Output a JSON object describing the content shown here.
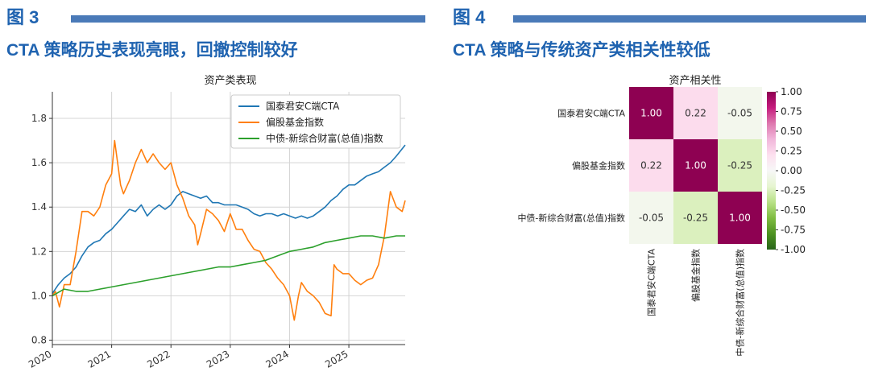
{
  "figures": [
    {
      "label": "图 3",
      "title": "CTA 策略历史表现亮眼，回撤控制较好"
    },
    {
      "label": "图 4",
      "title": "CTA 策略与传统资产类相关性较低"
    }
  ],
  "chart_data": [
    {
      "type": "line",
      "title": "资产类表现",
      "xlabel": "",
      "ylabel": "",
      "xlim": [
        2020.0,
        2025.95
      ],
      "ylim": [
        0.78,
        1.92
      ],
      "x_ticks": [
        "2020",
        "2021",
        "2022",
        "2023",
        "2024",
        "2025"
      ],
      "x_tick_values": [
        2020,
        2021,
        2022,
        2023,
        2024,
        2025
      ],
      "y_ticks": [
        "0.8",
        "1.0",
        "1.2",
        "1.4",
        "1.6",
        "1.8"
      ],
      "y_tick_values": [
        0.8,
        1.0,
        1.2,
        1.4,
        1.6,
        1.8
      ],
      "grid": "on",
      "legend_position": "top-right",
      "series": [
        {
          "name": "国泰君安C端CTA",
          "color": "#1f77b4",
          "points": [
            [
              2020.0,
              1.01
            ],
            [
              2020.1,
              1.05
            ],
            [
              2020.2,
              1.08
            ],
            [
              2020.3,
              1.1
            ],
            [
              2020.4,
              1.13
            ],
            [
              2020.5,
              1.18
            ],
            [
              2020.6,
              1.22
            ],
            [
              2020.7,
              1.24
            ],
            [
              2020.8,
              1.25
            ],
            [
              2020.9,
              1.28
            ],
            [
              2021.0,
              1.3
            ],
            [
              2021.1,
              1.33
            ],
            [
              2021.2,
              1.36
            ],
            [
              2021.3,
              1.39
            ],
            [
              2021.4,
              1.38
            ],
            [
              2021.5,
              1.41
            ],
            [
              2021.6,
              1.36
            ],
            [
              2021.7,
              1.39
            ],
            [
              2021.8,
              1.41
            ],
            [
              2021.9,
              1.39
            ],
            [
              2022.0,
              1.41
            ],
            [
              2022.1,
              1.45
            ],
            [
              2022.2,
              1.47
            ],
            [
              2022.3,
              1.46
            ],
            [
              2022.4,
              1.45
            ],
            [
              2022.5,
              1.44
            ],
            [
              2022.6,
              1.45
            ],
            [
              2022.7,
              1.42
            ],
            [
              2022.8,
              1.42
            ],
            [
              2022.9,
              1.41
            ],
            [
              2023.0,
              1.41
            ],
            [
              2023.1,
              1.41
            ],
            [
              2023.2,
              1.4
            ],
            [
              2023.3,
              1.39
            ],
            [
              2023.4,
              1.37
            ],
            [
              2023.5,
              1.36
            ],
            [
              2023.6,
              1.37
            ],
            [
              2023.7,
              1.37
            ],
            [
              2023.8,
              1.36
            ],
            [
              2023.9,
              1.37
            ],
            [
              2024.0,
              1.36
            ],
            [
              2024.1,
              1.35
            ],
            [
              2024.2,
              1.36
            ],
            [
              2024.3,
              1.35
            ],
            [
              2024.4,
              1.36
            ],
            [
              2024.5,
              1.38
            ],
            [
              2024.6,
              1.4
            ],
            [
              2024.7,
              1.43
            ],
            [
              2024.8,
              1.45
            ],
            [
              2024.9,
              1.48
            ],
            [
              2025.0,
              1.5
            ],
            [
              2025.1,
              1.5
            ],
            [
              2025.2,
              1.52
            ],
            [
              2025.3,
              1.54
            ],
            [
              2025.4,
              1.55
            ],
            [
              2025.5,
              1.56
            ],
            [
              2025.6,
              1.58
            ],
            [
              2025.7,
              1.6
            ],
            [
              2025.8,
              1.63
            ],
            [
              2025.95,
              1.68
            ]
          ]
        },
        {
          "name": "偏股基金指数",
          "color": "#ff7f0e",
          "points": [
            [
              2020.0,
              1.0
            ],
            [
              2020.05,
              1.02
            ],
            [
              2020.12,
              0.95
            ],
            [
              2020.2,
              1.05
            ],
            [
              2020.3,
              1.05
            ],
            [
              2020.4,
              1.2
            ],
            [
              2020.5,
              1.38
            ],
            [
              2020.6,
              1.38
            ],
            [
              2020.7,
              1.36
            ],
            [
              2020.8,
              1.4
            ],
            [
              2020.9,
              1.5
            ],
            [
              2021.0,
              1.55
            ],
            [
              2021.05,
              1.7
            ],
            [
              2021.1,
              1.6
            ],
            [
              2021.15,
              1.5
            ],
            [
              2021.2,
              1.46
            ],
            [
              2021.3,
              1.52
            ],
            [
              2021.4,
              1.6
            ],
            [
              2021.5,
              1.66
            ],
            [
              2021.6,
              1.6
            ],
            [
              2021.7,
              1.64
            ],
            [
              2021.8,
              1.6
            ],
            [
              2021.9,
              1.57
            ],
            [
              2022.0,
              1.6
            ],
            [
              2022.1,
              1.5
            ],
            [
              2022.2,
              1.44
            ],
            [
              2022.3,
              1.36
            ],
            [
              2022.4,
              1.32
            ],
            [
              2022.45,
              1.23
            ],
            [
              2022.5,
              1.28
            ],
            [
              2022.6,
              1.39
            ],
            [
              2022.7,
              1.37
            ],
            [
              2022.8,
              1.34
            ],
            [
              2022.9,
              1.29
            ],
            [
              2023.0,
              1.37
            ],
            [
              2023.1,
              1.3
            ],
            [
              2023.2,
              1.3
            ],
            [
              2023.3,
              1.25
            ],
            [
              2023.4,
              1.21
            ],
            [
              2023.5,
              1.2
            ],
            [
              2023.6,
              1.15
            ],
            [
              2023.7,
              1.12
            ],
            [
              2023.8,
              1.08
            ],
            [
              2023.9,
              1.05
            ],
            [
              2024.0,
              1.0
            ],
            [
              2024.08,
              0.89
            ],
            [
              2024.15,
              1.0
            ],
            [
              2024.2,
              1.06
            ],
            [
              2024.3,
              1.02
            ],
            [
              2024.4,
              1.0
            ],
            [
              2024.5,
              0.97
            ],
            [
              2024.6,
              0.92
            ],
            [
              2024.7,
              0.91
            ],
            [
              2024.75,
              1.14
            ],
            [
              2024.8,
              1.12
            ],
            [
              2024.9,
              1.1
            ],
            [
              2025.0,
              1.1
            ],
            [
              2025.1,
              1.07
            ],
            [
              2025.2,
              1.05
            ],
            [
              2025.3,
              1.07
            ],
            [
              2025.4,
              1.08
            ],
            [
              2025.5,
              1.14
            ],
            [
              2025.6,
              1.27
            ],
            [
              2025.7,
              1.47
            ],
            [
              2025.8,
              1.4
            ],
            [
              2025.9,
              1.38
            ],
            [
              2025.95,
              1.43
            ]
          ]
        },
        {
          "name": "中债-新综合财富(总值)指数",
          "color": "#2ca02c",
          "points": [
            [
              2020.0,
              1.0
            ],
            [
              2020.2,
              1.03
            ],
            [
              2020.4,
              1.02
            ],
            [
              2020.6,
              1.02
            ],
            [
              2020.8,
              1.03
            ],
            [
              2021.0,
              1.04
            ],
            [
              2021.2,
              1.05
            ],
            [
              2021.4,
              1.06
            ],
            [
              2021.6,
              1.07
            ],
            [
              2021.8,
              1.08
            ],
            [
              2022.0,
              1.09
            ],
            [
              2022.2,
              1.1
            ],
            [
              2022.4,
              1.11
            ],
            [
              2022.6,
              1.12
            ],
            [
              2022.8,
              1.13
            ],
            [
              2023.0,
              1.13
            ],
            [
              2023.2,
              1.14
            ],
            [
              2023.4,
              1.15
            ],
            [
              2023.6,
              1.16
            ],
            [
              2023.8,
              1.18
            ],
            [
              2024.0,
              1.2
            ],
            [
              2024.2,
              1.21
            ],
            [
              2024.4,
              1.22
            ],
            [
              2024.6,
              1.24
            ],
            [
              2024.8,
              1.25
            ],
            [
              2025.0,
              1.26
            ],
            [
              2025.2,
              1.27
            ],
            [
              2025.4,
              1.27
            ],
            [
              2025.6,
              1.26
            ],
            [
              2025.8,
              1.27
            ],
            [
              2025.95,
              1.27
            ]
          ]
        }
      ]
    },
    {
      "type": "heatmap",
      "title": "资产相关性",
      "row_labels": [
        "国泰君安C端CTA",
        "偏股基金指数",
        "中债-新综合财富(总值)指数"
      ],
      "col_labels": [
        "国泰君安C端CTA",
        "偏股基金指数",
        "中债-新综合财富(总值)指数"
      ],
      "values": [
        [
          1.0,
          0.22,
          -0.05
        ],
        [
          0.22,
          1.0,
          -0.25
        ],
        [
          -0.05,
          -0.25,
          1.0
        ]
      ],
      "cell_labels": [
        [
          "1.00",
          "0.22",
          "-0.05"
        ],
        [
          "0.22",
          "1.00",
          "-0.25"
        ],
        [
          "-0.05",
          "-0.25",
          "1.00"
        ]
      ],
      "colorbar": {
        "min": -1.0,
        "max": 1.0,
        "ticks": [
          "1.00",
          "0.75",
          "0.50",
          "0.25",
          "0.00",
          "-0.25",
          "-0.50",
          "-0.75",
          "-1.00"
        ],
        "tick_values": [
          1.0,
          0.75,
          0.5,
          0.25,
          0.0,
          -0.25,
          -0.5,
          -0.75,
          -1.0
        ],
        "colors": [
          "#276419",
          "#4d9221",
          "#7fbc41",
          "#b8e186",
          "#e6f5d0",
          "#f7f7f7",
          "#fde0ef",
          "#f1b6da",
          "#de77ae",
          "#c51b7d",
          "#8e0152"
        ]
      }
    }
  ]
}
